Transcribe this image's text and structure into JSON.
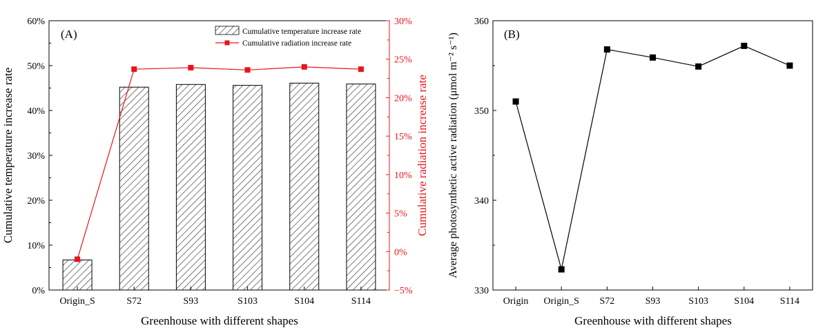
{
  "chart_data": [
    {
      "panel_label": "(A)",
      "type": "bar+line",
      "xlabel": "Greenhouse with different shapes",
      "categories": [
        "Origin_S",
        "S72",
        "S93",
        "S103",
        "S104",
        "S114"
      ],
      "ylabel_left": "Cumulative temperature increase rate",
      "ylabel_right": "Cumulative radiation increase rate",
      "ylim_left": [
        0,
        60
      ],
      "ylim_right": [
        -5,
        30
      ],
      "yticks_left": [
        "0%",
        "10%",
        "20%",
        "30%",
        "40%",
        "50%",
        "60%"
      ],
      "yticks_right": [
        "−5%",
        "0%",
        "5%",
        "10%",
        "15%",
        "20%",
        "25%",
        "30%"
      ],
      "series": [
        {
          "name": "Cumulative temperature increase rate",
          "kind": "bar",
          "axis": "left",
          "style": "hatched",
          "values": [
            6.7,
            45.2,
            45.8,
            45.6,
            46.1,
            45.9
          ]
        },
        {
          "name": "Cumulative radiation increase rate",
          "kind": "line",
          "axis": "right",
          "color": "#e8141b",
          "values": [
            -1.0,
            23.7,
            23.9,
            23.6,
            24.0,
            23.7
          ]
        }
      ],
      "legend_position": "top-right",
      "right_axis_color": "#e8141b"
    },
    {
      "panel_label": "(B)",
      "type": "line",
      "xlabel": "Greenhouse with different shapes",
      "ylabel": "Average photosynthetic active radiation (μmol m⁻² s⁻¹)",
      "categories": [
        "Origin",
        "Origin_S",
        "S72",
        "S93",
        "S103",
        "S104",
        "S114"
      ],
      "ylim": [
        330,
        360
      ],
      "yticks": [
        "330",
        "340",
        "350",
        "360"
      ],
      "series": [
        {
          "kind": "line",
          "marker": "square",
          "color": "#000000",
          "values": [
            351.0,
            332.3,
            356.8,
            355.9,
            354.9,
            357.2,
            355.0
          ]
        }
      ]
    }
  ]
}
